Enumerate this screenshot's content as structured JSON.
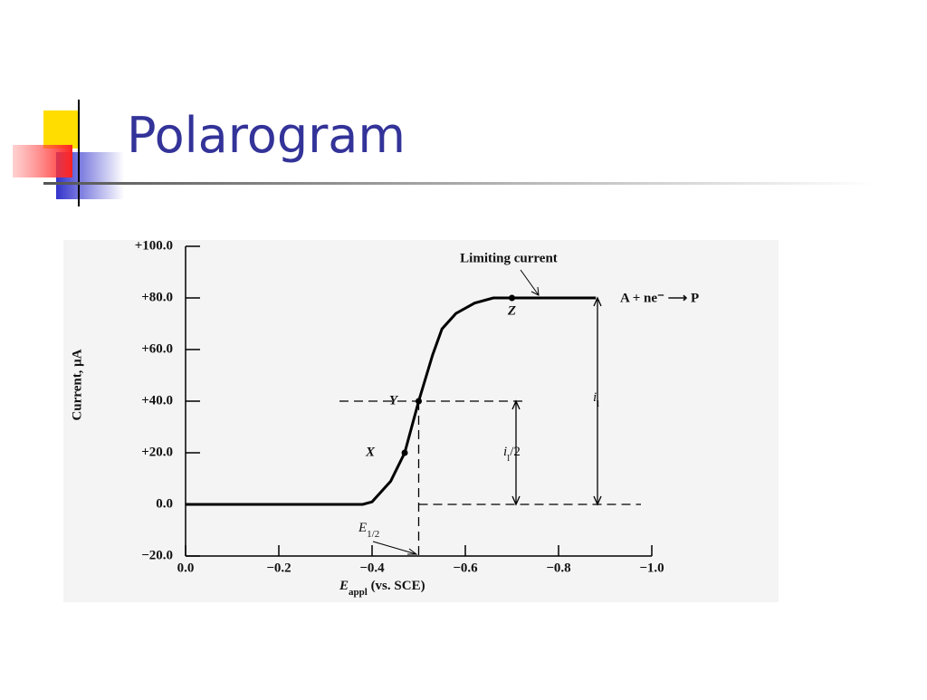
{
  "slide_title": "Polarogram",
  "chart_data": {
    "type": "line",
    "y_label": "Current, μA",
    "x_label": [
      "E",
      "appl",
      " (vs. SCE)"
    ],
    "xlim": [
      0,
      -1.0
    ],
    "ylim": [
      -20,
      100
    ],
    "xticks": [
      {
        "value": 0,
        "label": "0.0"
      },
      {
        "value": -0.2,
        "label": "−0.2"
      },
      {
        "value": -0.4,
        "label": "−0.4"
      },
      {
        "value": -0.6,
        "label": "−0.6"
      },
      {
        "value": -0.8,
        "label": "−0.8"
      },
      {
        "value": -1.0,
        "label": "−1.0"
      }
    ],
    "yticks": [
      {
        "value": 100,
        "label": "+100.0"
      },
      {
        "value": 80,
        "label": "+80.0"
      },
      {
        "value": 60,
        "label": "+60.0"
      },
      {
        "value": 40,
        "label": "+40.0"
      },
      {
        "value": 20,
        "label": "+20.0"
      },
      {
        "value": 0,
        "label": "0.0"
      },
      {
        "value": -20,
        "label": "−20.0"
      }
    ],
    "series": [
      {
        "color": "#000000",
        "x": [
          0,
          -0.2,
          -0.38,
          -0.4,
          -0.44,
          -0.47,
          -0.5,
          -0.53,
          -0.55,
          -0.58,
          -0.62,
          -0.66,
          -0.72,
          -0.88
        ],
        "values": [
          0,
          0,
          0,
          1,
          9,
          20,
          40,
          58,
          68,
          74,
          78,
          80,
          80,
          80
        ]
      }
    ],
    "points": [
      {
        "label": "X",
        "x": -0.47,
        "y": 20
      },
      {
        "label": "Y",
        "x": -0.5,
        "y": 40
      },
      {
        "label": "Z",
        "x": -0.7,
        "y": 80
      }
    ],
    "annotations": {
      "limiting": "Limiting current",
      "reaction": "A + ne⁻ ⟶ P",
      "il": [
        "i",
        "l"
      ],
      "il_half": [
        "i",
        "l",
        "/2"
      ],
      "e_half": [
        "E",
        "1/2"
      ]
    }
  }
}
